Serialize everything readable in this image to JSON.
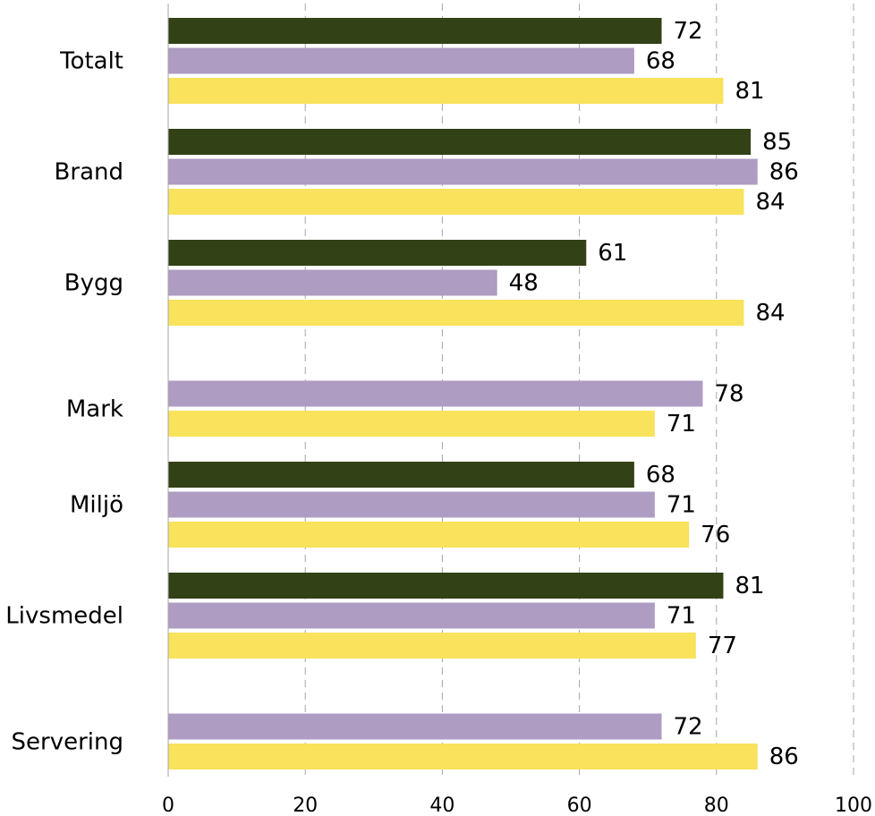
{
  "chart_data": {
    "type": "bar",
    "orientation": "horizontal",
    "categories": [
      "Totalt",
      "Brand",
      "Bygg",
      "Mark",
      "Miljö",
      "Livsmedel",
      "Servering"
    ],
    "series": [
      {
        "color": "#334117",
        "values": [
          72,
          85,
          61,
          null,
          68,
          81,
          null
        ]
      },
      {
        "color": "#af9cc2",
        "values": [
          68,
          86,
          48,
          78,
          71,
          71,
          72
        ]
      },
      {
        "color": "#f9e25c",
        "values": [
          81,
          84,
          84,
          71,
          76,
          77,
          86
        ]
      }
    ],
    "xlim": [
      0,
      100
    ],
    "xticks": [
      "0",
      "20",
      "40",
      "60",
      "80",
      "100"
    ],
    "grid": true,
    "legend": "none",
    "title": "",
    "xlabel": "",
    "ylabel": ""
  }
}
